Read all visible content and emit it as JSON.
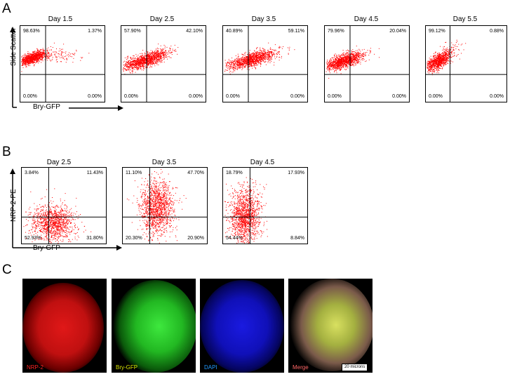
{
  "panels": {
    "A": {
      "letter": "A",
      "ylabel": "Side Scatter",
      "xlabel": "Bry-GFP",
      "plots": [
        {
          "title": "Day 1.5",
          "tl": "98.63%",
          "tr": "1.37%",
          "bl": "0.00%",
          "br": "0.00%"
        },
        {
          "title": "Day 2.5",
          "tl": "57.90%",
          "tr": "42.10%",
          "bl": "0.00%",
          "br": "0.00%"
        },
        {
          "title": "Day 3.5",
          "tl": "40.89%",
          "tr": "59.11%",
          "bl": "0.00%",
          "br": "0.00%"
        },
        {
          "title": "Day 4.5",
          "tl": "79.96%",
          "tr": "20.04%",
          "bl": "0.00%",
          "br": "0.00%"
        },
        {
          "title": "Day 5.5",
          "tl": "99.12%",
          "tr": "0.88%",
          "bl": "0.00%",
          "br": "0.00%"
        }
      ]
    },
    "B": {
      "letter": "B",
      "ylabel": "NRP-2-PE",
      "xlabel": "Bry-GFP",
      "plots": [
        {
          "title": "Day 2.5",
          "tl": "3.84%",
          "tr": "11.43%",
          "bl": "52.93%",
          "br": "31.80%"
        },
        {
          "title": "Day 3.5",
          "tl": "11.10%",
          "tr": "47.70%",
          "bl": "20.30%",
          "br": "20.90%"
        },
        {
          "title": "Day 4.5",
          "tl": "18.79%",
          "tr": "17.93%",
          "bl": "54.44%",
          "br": "8.84%"
        }
      ]
    },
    "C": {
      "letter": "C",
      "images": [
        {
          "label": "NRP-2",
          "label_color": "#ff2222",
          "channel": "red"
        },
        {
          "label": "Bry-GFP",
          "label_color": "#d8e400",
          "channel": "green"
        },
        {
          "label": "DAPI",
          "label_color": "#2299ff",
          "channel": "blue"
        },
        {
          "label": "Merge",
          "label_color": "#ff6666",
          "channel": "merge"
        }
      ],
      "scalebar": "20 microns"
    }
  },
  "colors": {
    "dots": "#ff0000",
    "axes": "#000000"
  }
}
